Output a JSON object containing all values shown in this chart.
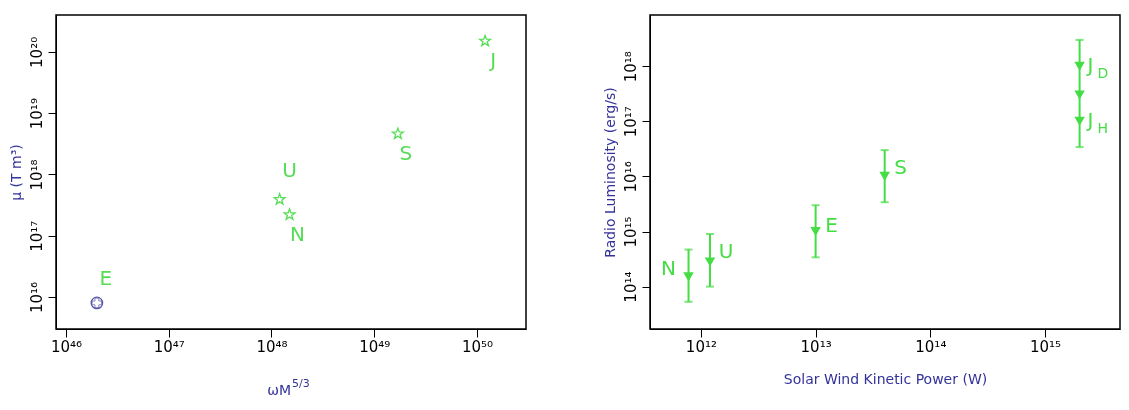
{
  "chart_data": [
    {
      "type": "scatter",
      "xlabel": "ωM$^{5/3}$",
      "ylabel": "μ (T m³)",
      "log": "xy",
      "grid": false,
      "xlim": [
        8e+45,
        3e+50
      ],
      "ylim": [
        3000000000000000.0,
        4e+20
      ],
      "xticks": [
        {
          "value": 1e+46,
          "label": "10⁴⁶"
        },
        {
          "value": 1e+47,
          "label": "10⁴⁷"
        },
        {
          "value": 1e+48,
          "label": "10⁴⁸"
        },
        {
          "value": 1e+49,
          "label": "10⁴⁹"
        },
        {
          "value": 1e+50,
          "label": "10⁵⁰"
        }
      ],
      "yticks": [
        {
          "value": 1e+16,
          "label": "10¹⁶"
        },
        {
          "value": 1e+17,
          "label": "10¹⁷"
        },
        {
          "value": 1e+18,
          "label": "10¹⁸"
        },
        {
          "value": 1e+19,
          "label": "10¹⁹"
        },
        {
          "value": 1e+20,
          "label": "10²⁰"
        }
      ],
      "series": [
        {
          "color": "#55dd55",
          "marker": "star",
          "x": [
            1.2e+48,
            1.5e+48,
            1.7e+49,
            1.2e+50
          ],
          "values": [
            3.9e+17,
            2.2e+17,
            4.6e+18,
            1.5e+20
          ]
        },
        {
          "color": "#5555aa",
          "marker": "circle",
          "x": [
            2e+46
          ],
          "values": [
            8000000000000000.0
          ]
        }
      ],
      "annotations": [
        {
          "text": "E",
          "x": 2e+46,
          "y": 8000000000000000.0
        },
        {
          "text": "U",
          "x": 1.2e+48,
          "y": 3.9e+17
        },
        {
          "text": "N",
          "x": 1.5e+48,
          "y": 2.2e+17
        },
        {
          "text": "S",
          "x": 1.7e+49,
          "y": 4.6e+18
        },
        {
          "text": "J",
          "x": 1.2e+50,
          "y": 1.5e+20
        }
      ]
    },
    {
      "type": "scatter",
      "xlabel": "Solar Wind Kinetic Power (W)",
      "ylabel": "Radio Luminosity (erg/s)",
      "log": "xy",
      "grid": false,
      "xlim": [
        360000000000.0,
        4500000000000000.0
      ],
      "ylim": [
        17000000000000.0,
        8.5e+18
      ],
      "xticks": [
        {
          "value": 1000000000000.0,
          "label": "10¹²"
        },
        {
          "value": 10000000000000.0,
          "label": "10¹³"
        },
        {
          "value": 100000000000000.0,
          "label": "10¹⁴"
        },
        {
          "value": 1000000000000000.0,
          "label": "10¹⁵"
        }
      ],
      "yticks": [
        {
          "value": 100000000000000.0,
          "label": "10¹⁴"
        },
        {
          "value": 1000000000000000.0,
          "label": "10¹⁵"
        },
        {
          "value": 1e+16,
          "label": "10¹⁶"
        },
        {
          "value": 1e+17,
          "label": "10¹⁷"
        },
        {
          "value": 1e+18,
          "label": "10¹⁸"
        }
      ],
      "series": [
        {
          "color": "#44dd44",
          "marker": "triangle",
          "x": [
            780000000000.0,
            1200000000000.0,
            10000000000000.0,
            40000000000000.0,
            2000000000000000.0,
            2000000000000000.0,
            2000000000000000.0
          ],
          "values": [
            150000000000000.0,
            280000000000000.0,
            1000000000000000.0,
            1e+16,
            1e+18,
            3e+17,
            1e+17
          ],
          "errors": [
            [
              53000000000000.0,
              470000000000000.0
            ],
            [
              100000000000000.0,
              900000000000000.0
            ],
            [
              340000000000000.0,
              3000000000000000.0
            ],
            [
              3400000000000000.0,
              3e+16
            ],
            null,
            [
              3.4e+16,
              3e+18
            ],
            null
          ]
        }
      ],
      "annotations": [
        {
          "text": "N",
          "x": 780000000000.0,
          "y": 150000000000000.0
        },
        {
          "text": "U",
          "x": 1200000000000.0,
          "y": 280000000000000.0
        },
        {
          "text": "E",
          "x": 10000000000000.0,
          "y": 1000000000000000.0
        },
        {
          "text": "S",
          "x": 40000000000000.0,
          "y": 1e+16
        },
        {
          "text": "J$_{D}$",
          "x": 2000000000000000.0,
          "y": 1e+18
        },
        {
          "text": "J$_{H}$",
          "x": 2000000000000000.0,
          "y": 1e+17
        }
      ]
    }
  ]
}
